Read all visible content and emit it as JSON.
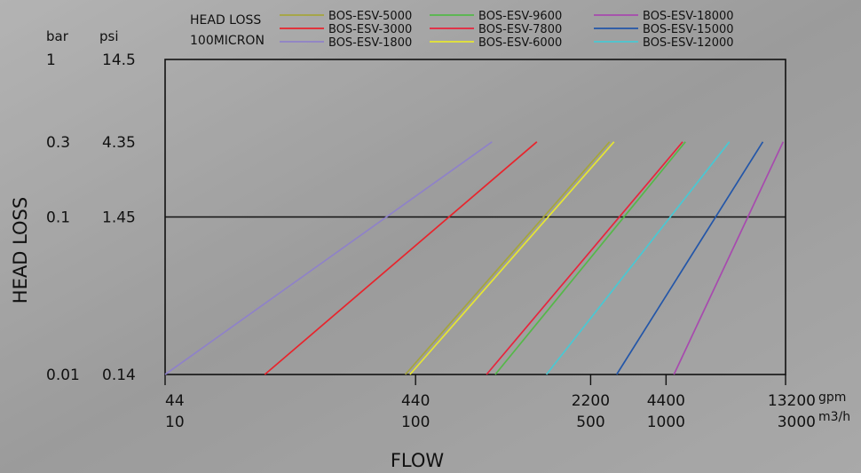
{
  "chart_data": {
    "type": "line",
    "title": "",
    "xlabel": "FLOW",
    "ylabel": "HEAD LOSS",
    "legend_title_lines": [
      "HEAD LOSS",
      "100MICRON"
    ],
    "x_scale": "log",
    "y_scale": "log",
    "xlim_m3h": [
      10,
      3000
    ],
    "ylim_bar": [
      0.01,
      1
    ],
    "grid": false,
    "legend_position": "top",
    "y_unit_labels": [
      "bar",
      "psi"
    ],
    "x_unit_labels": [
      "gpm",
      "m3/h"
    ],
    "y_ticks": [
      {
        "bar": "1",
        "psi": "14.5",
        "value": 1
      },
      {
        "bar": "0.3",
        "psi": "4.35",
        "value": 0.3
      },
      {
        "bar": "0.1",
        "psi": "1.45",
        "value": 0.1
      },
      {
        "bar": "0.01",
        "psi": "0.14",
        "value": 0.01
      }
    ],
    "x_ticks": [
      {
        "gpm": "44",
        "m3h": "10",
        "value": 10
      },
      {
        "gpm": "440",
        "m3h": "100",
        "value": 100
      },
      {
        "gpm": "2200",
        "m3h": "500",
        "value": 500
      },
      {
        "gpm": "4400",
        "m3h": "1000",
        "value": 1000
      },
      {
        "gpm": "13200",
        "m3h": "3000",
        "value": 3000
      }
    ],
    "series": [
      {
        "name": "BOS-ESV-1800",
        "color": "#8f82c8",
        "x": [
          10,
          202
        ],
        "y": [
          0.01,
          0.3
        ]
      },
      {
        "name": "BOS-ESV-3000",
        "color": "#e8242c",
        "x": [
          25,
          305
        ],
        "y": [
          0.01,
          0.3
        ]
      },
      {
        "name": "BOS-ESV-5000",
        "color": "#a5a53c",
        "x": [
          91,
          595
        ],
        "y": [
          0.01,
          0.3
        ]
      },
      {
        "name": "BOS-ESV-6000",
        "color": "#e6e632",
        "x": [
          95,
          620
        ],
        "y": [
          0.01,
          0.3
        ]
      },
      {
        "name": "BOS-ESV-7800",
        "color": "#e8243c",
        "x": [
          192,
          1165
        ],
        "y": [
          0.01,
          0.3
        ]
      },
      {
        "name": "BOS-ESV-9600",
        "color": "#54b848",
        "x": [
          208,
          1195
        ],
        "y": [
          0.01,
          0.3
        ]
      },
      {
        "name": "BOS-ESV-12000",
        "color": "#49c8d3",
        "x": [
          333,
          1790
        ],
        "y": [
          0.01,
          0.3
        ]
      },
      {
        "name": "BOS-ESV-15000",
        "color": "#2356a8",
        "x": [
          635,
          2435
        ],
        "y": [
          0.01,
          0.3
        ]
      },
      {
        "name": "BOS-ESV-18000",
        "color": "#a74aae",
        "x": [
          1075,
          2935
        ],
        "y": [
          0.01,
          0.3
        ]
      }
    ],
    "legend_order": [
      "BOS-ESV-5000",
      "BOS-ESV-9600",
      "BOS-ESV-18000",
      "BOS-ESV-3000",
      "BOS-ESV-7800",
      "BOS-ESV-15000",
      "BOS-ESV-1800",
      "BOS-ESV-6000",
      "BOS-ESV-12000"
    ]
  }
}
